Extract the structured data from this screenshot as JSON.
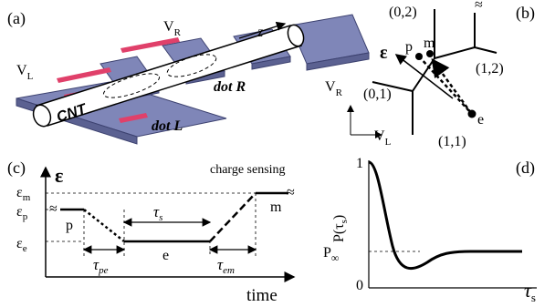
{
  "panel_a": {
    "label": "(a)",
    "gate_right": "V",
    "gate_right_sub": "R",
    "gate_left": "V",
    "gate_left_sub": "L",
    "axis_z": "z",
    "tube": "CNT",
    "dot_right": "dot  R",
    "dot_left": "dot  L",
    "colors": {
      "gate": "#e0406a",
      "electrode": "#7f86b8",
      "electrode_dark": "#5b6191",
      "tube": "#ffffff"
    }
  },
  "panel_b": {
    "label": "(b)",
    "state_02": "(0,2)",
    "state_12": "(1,2)",
    "state_01": "(0,1)",
    "state_11": "(1,1)",
    "point_p": "p",
    "point_m": "m",
    "point_e": "e",
    "energy_symbol": "ε",
    "axis_y": "V",
    "axis_y_sub": "R",
    "axis_x": "V",
    "axis_x_sub": "L"
  },
  "panel_c": {
    "label": "(c)",
    "energy_axis": "ε",
    "eps_m": "ε",
    "eps_m_sub": "m",
    "eps_p": "ε",
    "eps_p_sub": "p",
    "eps_e": "ε",
    "eps_e_sub": "e",
    "level_p": "p",
    "level_e": "e",
    "level_m": "m",
    "tau_s": "τ",
    "tau_s_sub": "s",
    "tau_pe": "τ",
    "tau_pe_sub": "pe",
    "tau_em": "τ",
    "tau_em_sub": "em",
    "annotation": "charge sensing",
    "x_axis": "time"
  },
  "panel_d": {
    "label": "(d)",
    "y_axis": "P(τ",
    "y_axis_sub": "s",
    "y_axis_close": ")",
    "tick_1": "1",
    "tick_0": "0",
    "p_inf": "P",
    "p_inf_sub": "∞",
    "x_axis": "τ",
    "x_axis_sub": "s"
  }
}
